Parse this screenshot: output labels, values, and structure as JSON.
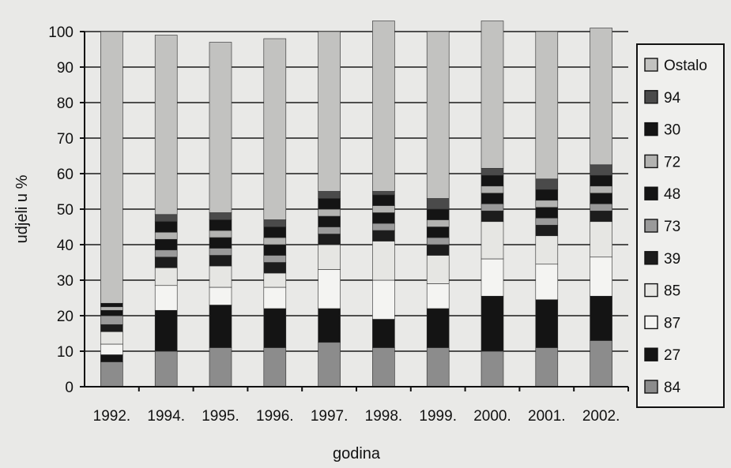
{
  "chart_data": {
    "type": "bar",
    "stacked": true,
    "categories": [
      "1992.",
      "1994.",
      "1995.",
      "1996.",
      "1997.",
      "1998.",
      "1999.",
      "2000.",
      "2001.",
      "2002."
    ],
    "xlabel": "godina",
    "ylabel": "udjeli u %",
    "ylim": [
      0,
      100
    ],
    "yticks": [
      0,
      10,
      20,
      30,
      40,
      50,
      60,
      70,
      80,
      90,
      100
    ],
    "grid": true,
    "legend_position": "right",
    "series": [
      {
        "name": "84",
        "color": "#8c8c8c",
        "values": [
          7,
          10,
          11,
          11,
          12.5,
          11,
          11,
          10,
          11,
          13
        ]
      },
      {
        "name": "27",
        "color": "#141414",
        "values": [
          2,
          11.5,
          12,
          11,
          9.5,
          8,
          11,
          15.5,
          13.5,
          12.5
        ]
      },
      {
        "name": "87",
        "color": "#f4f4f2",
        "values": [
          3,
          7,
          5,
          6,
          11,
          11,
          7,
          10.5,
          10,
          11
        ]
      },
      {
        "name": "85",
        "color": "#e6e6e3",
        "values": [
          3.5,
          5,
          6,
          4,
          7,
          11,
          8,
          10.5,
          8,
          10
        ]
      },
      {
        "name": "39",
        "color": "#1c1c1c",
        "values": [
          2,
          3,
          3,
          3,
          3,
          3,
          3,
          3,
          3,
          3
        ]
      },
      {
        "name": "73",
        "color": "#9a9a9a",
        "values": [
          2.5,
          2,
          2,
          2,
          2,
          2,
          2,
          2,
          2,
          2
        ]
      },
      {
        "name": "48",
        "color": "#141414",
        "values": [
          1.5,
          3,
          3,
          3,
          3,
          3,
          3,
          3,
          3,
          3
        ]
      },
      {
        "name": "72",
        "color": "#b3b3b1",
        "values": [
          1,
          2,
          2,
          2,
          2,
          2,
          2,
          2,
          2,
          2
        ]
      },
      {
        "name": "30",
        "color": "#141414",
        "values": [
          1,
          3,
          3,
          3,
          3,
          3,
          3,
          3,
          3,
          3
        ]
      },
      {
        "name": "94",
        "color": "#4a4a4a",
        "values": [
          0,
          2,
          2,
          2,
          2,
          1,
          3,
          2,
          3,
          3
        ]
      },
      {
        "name": "Ostalo",
        "color": "#c2c2c0",
        "values": [
          76.5,
          50.5,
          48,
          51,
          45,
          48,
          47,
          41.5,
          41.5,
          38.5
        ]
      }
    ]
  }
}
